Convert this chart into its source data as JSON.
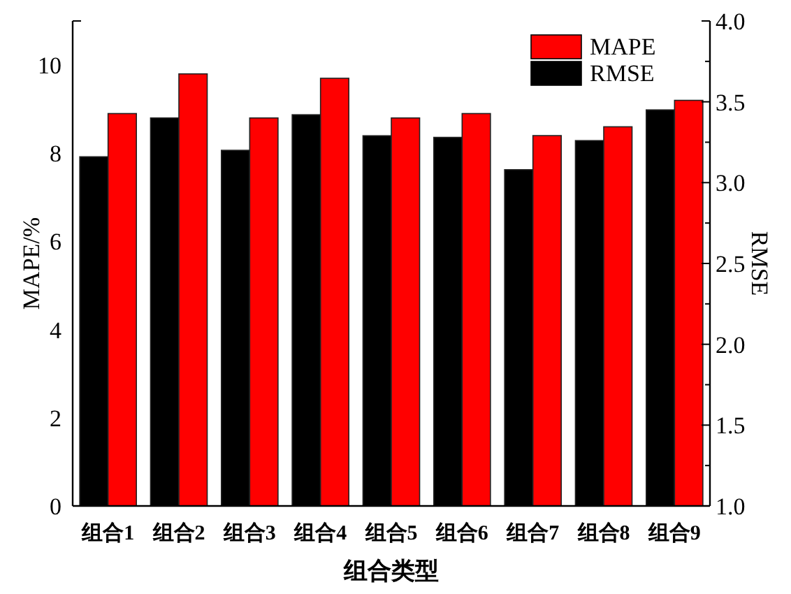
{
  "chart_data": {
    "type": "bar",
    "xlabel": "组合类型",
    "ylabel": "MAPE/%",
    "y2label": "RMSE",
    "categories": [
      "组合1",
      "组合2",
      "组合3",
      "组合4",
      "组合5",
      "组合6",
      "组合7",
      "组合8",
      "组合9"
    ],
    "series": [
      {
        "name": "RMSE",
        "color": "#000000",
        "axis": "y2",
        "values": [
          3.16,
          3.4,
          3.2,
          3.42,
          3.29,
          3.28,
          3.08,
          3.26,
          3.45
        ]
      },
      {
        "name": "MAPE",
        "color": "#ff0000",
        "values": [
          8.9,
          9.8,
          8.8,
          9.7,
          8.8,
          8.9,
          8.4,
          8.6,
          9.2
        ]
      }
    ],
    "ylim": [
      0,
      11
    ],
    "yticks": [
      0,
      2,
      4,
      6,
      8,
      10
    ],
    "y2lim": [
      1,
      4
    ],
    "y2ticks": [
      {
        "value": 1.0,
        "label": "1.0"
      },
      {
        "value": 1.25,
        "label": null
      },
      {
        "value": 1.5,
        "label": "1.5"
      },
      {
        "value": 1.75,
        "label": null
      },
      {
        "value": 2.0,
        "label": "2.0"
      },
      {
        "value": 2.25,
        "label": null
      },
      {
        "value": 2.5,
        "label": "2.5"
      },
      {
        "value": 2.75,
        "label": null
      },
      {
        "value": 3.0,
        "label": "3.0"
      },
      {
        "value": 3.25,
        "label": null
      },
      {
        "value": 3.5,
        "label": "3.5"
      },
      {
        "value": 3.75,
        "label": null
      },
      {
        "value": 4.0,
        "label": "4.0"
      }
    ],
    "legend": "top right"
  }
}
